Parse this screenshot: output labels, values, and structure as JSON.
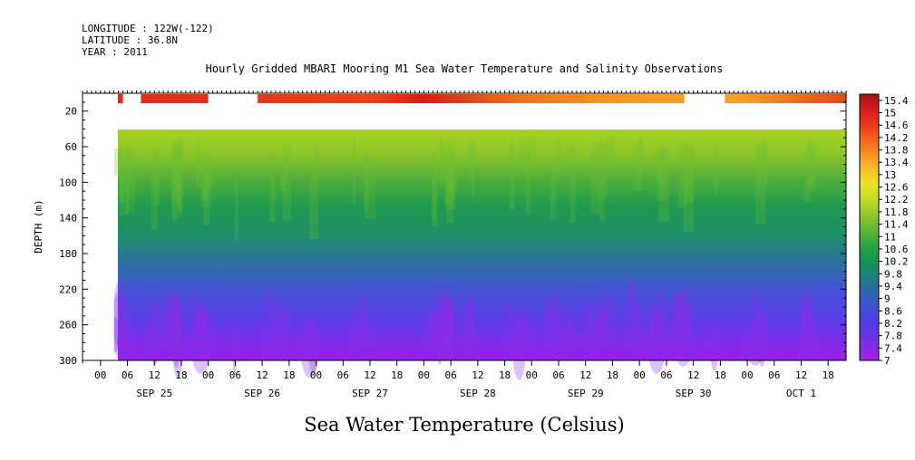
{
  "header": {
    "longitude": "LONGITUDE : 122W(-122)",
    "latitude": "LATITUDE : 36.8N",
    "year": "YEAR : 2011"
  },
  "chart_data": {
    "type": "heatmap",
    "title": "Hourly Gridded MBARI Mooring M1 Sea Water Temperature and Salinity Observations",
    "xlabel": "Sea Water Temperature (Celsius)",
    "ylabel": "DEPTH (m)",
    "ylim": [
      300,
      0
    ],
    "y_ticks": [
      "20",
      "60",
      "100",
      "140",
      "180",
      "220",
      "260",
      "300"
    ],
    "x_hour_ticks": [
      "00",
      "06",
      "12",
      "18",
      "00",
      "06",
      "12",
      "18",
      "00",
      "06",
      "12",
      "18",
      "00",
      "06",
      "12",
      "18",
      "00",
      "06",
      "12",
      "18",
      "00",
      "06",
      "12",
      "18",
      "00",
      "06",
      "12",
      "18"
    ],
    "x_day_labels": [
      "SEP 25",
      "SEP 26",
      "SEP 27",
      "SEP 28",
      "SEP 29",
      "SEP 30",
      "OCT  1"
    ],
    "x_range": [
      "SEP 24 20:00",
      "OCT 1 22:00"
    ],
    "data_start": "SEP 25 03:00",
    "colorbar": {
      "range": [
        7.0,
        15.6
      ],
      "labels": [
        "15.4",
        "15",
        "14.6",
        "14.2",
        "13.8",
        "13.4",
        "13",
        "12.6",
        "12.2",
        "11.8",
        "11.4",
        "11",
        "10.6",
        "10.2",
        "9.8",
        "9.4",
        "9",
        "8.6",
        "8.2",
        "7.8",
        "7.4",
        "7"
      ]
    },
    "depth_profile": {
      "depth_m": [
        4,
        10,
        38,
        60,
        100,
        140,
        180,
        220,
        260,
        300
      ],
      "temperature_c": [
        13.4,
        13.4,
        11.6,
        11.0,
        10.0,
        9.6,
        8.6,
        8.0,
        7.6,
        7.0
      ]
    },
    "surface_gaps": [
      [
        "SEP 25 05:00",
        "SEP 25 09:00"
      ],
      [
        "SEP 26 00:00",
        "SEP 26 11:00"
      ],
      [
        "SEP 30 10:00",
        "SEP 30 19:00"
      ]
    ],
    "missing_depth_band_m": [
      12,
      38
    ],
    "colors": {
      "warm": "#c0141b",
      "mid": "#2a9a3e",
      "cold": "#9b1ee8"
    }
  }
}
